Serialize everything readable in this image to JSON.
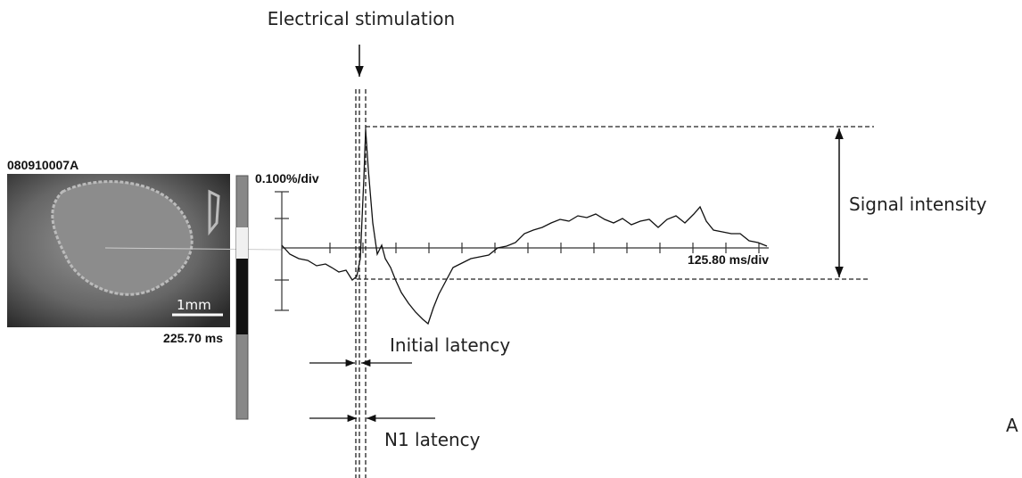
{
  "stimulus_label": "Electrical stimulation",
  "image": {
    "id": "080910007A",
    "scale_bar": "1mm",
    "time": "225.70 ms"
  },
  "trace": {
    "y_scale": "0.100%/div",
    "x_scale": "125.80 ms/div"
  },
  "annotations": {
    "signal_intensity": "Signal intensity",
    "initial_latency": "Initial latency",
    "n1_latency": "N1 latency"
  },
  "panel_label": "A"
}
